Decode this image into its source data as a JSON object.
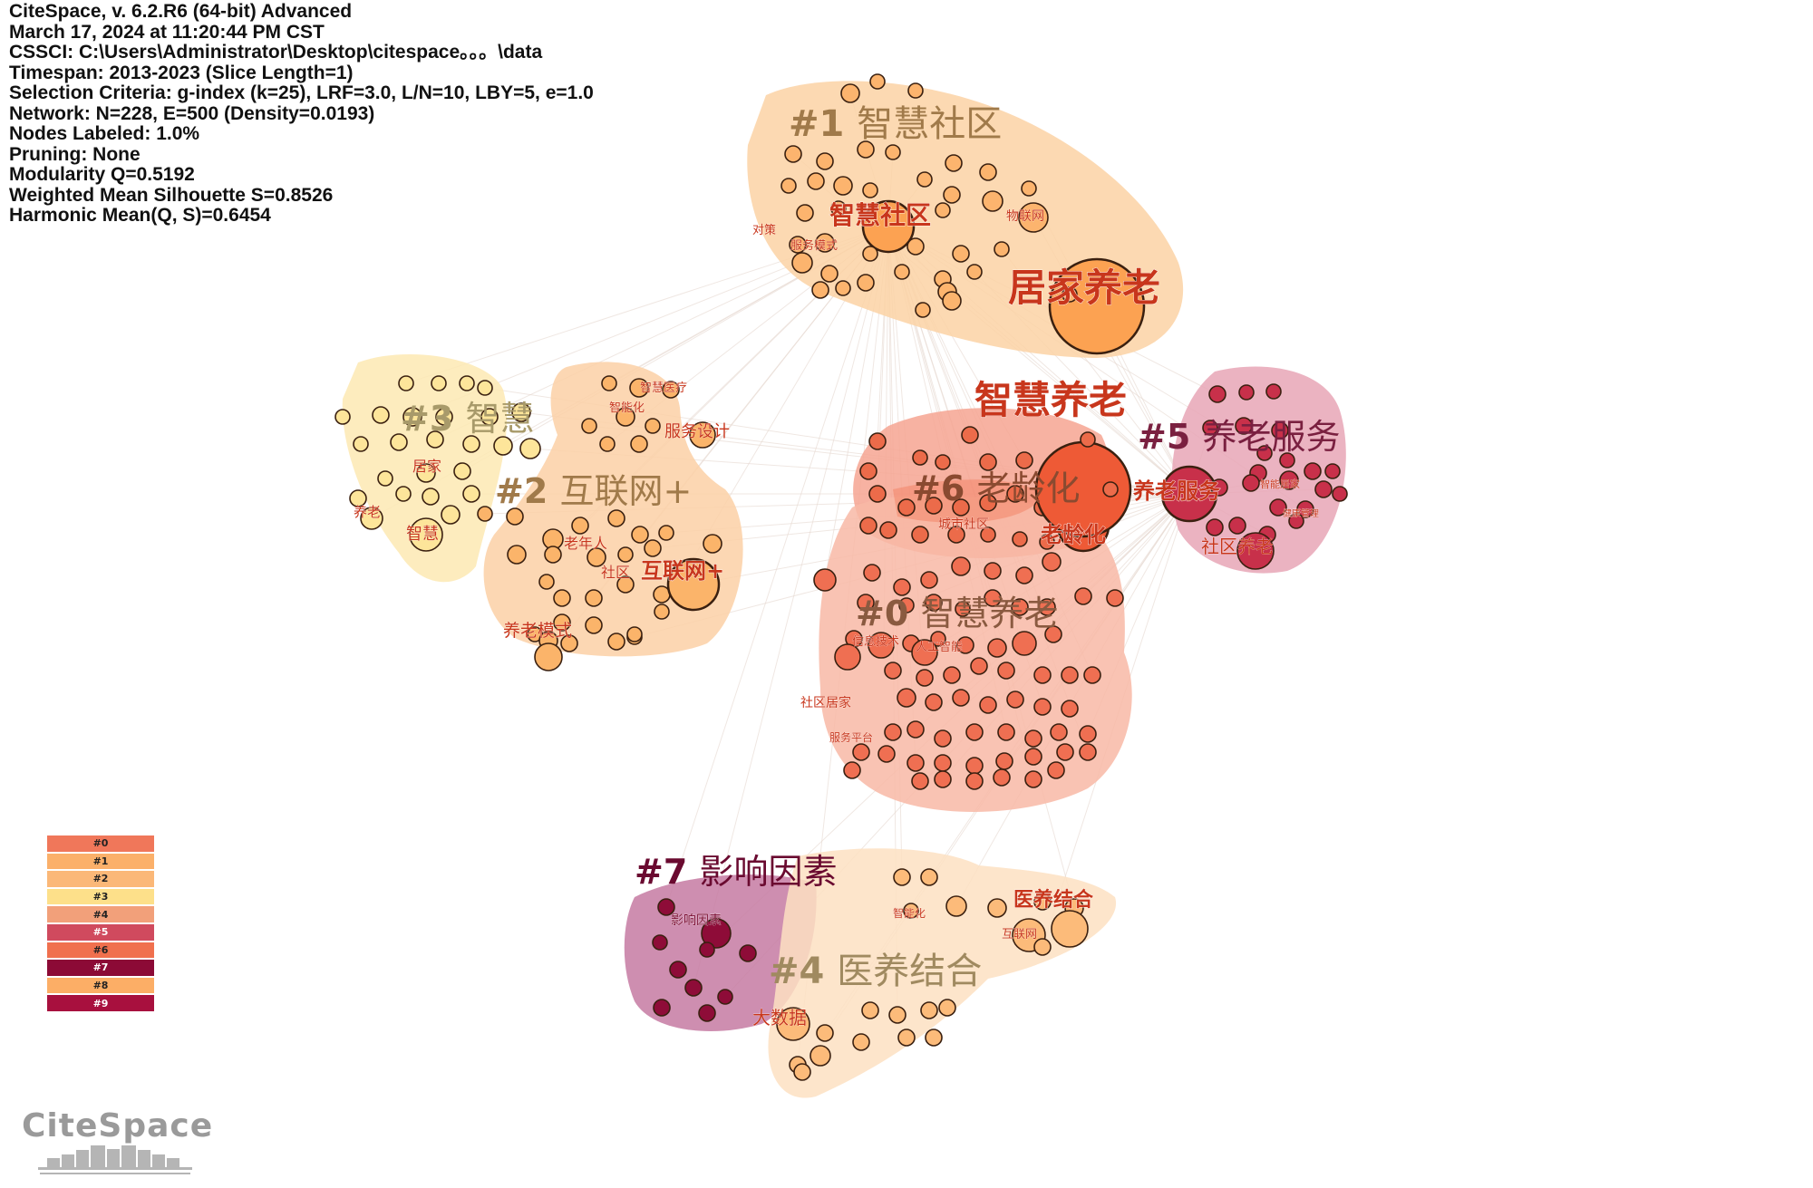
{
  "info_lines": [
    "CiteSpace, v. 6.2.R6 (64-bit) Advanced",
    "March 17, 2024 at 11:20:44 PM CST",
    "CSSCI: C:\\Users\\Administrator\\Desktop\\citespace。。。\\data",
    "Timespan: 2013-2023 (Slice Length=1)",
    "Selection Criteria: g-index (k=25), LRF=3.0, L/N=10, LBY=5, e=1.0",
    "Network: N=228, E=500 (Density=0.0193)",
    "Nodes Labeled: 1.0%",
    "Pruning: None",
    "Modularity Q=0.5192",
    "Weighted Mean Silhouette S=0.8526",
    "Harmonic Mean(Q, S)=0.6454"
  ],
  "clusters": [
    {
      "id": "#1",
      "label": "智慧社区",
      "color": "#fcd2a4",
      "label_color": "#a07a4a"
    },
    {
      "id": "#3",
      "label": "智慧",
      "color": "#fde9b3",
      "label_color": "#a89a6a"
    },
    {
      "id": "#2",
      "label": "互联网+",
      "color": "#fcd0a6",
      "label_color": "#a07a4a"
    },
    {
      "id": "#5",
      "label": "养老服务",
      "color": "#e8a6b6",
      "label_color": "#7a2040"
    },
    {
      "id": "#6",
      "label": "老龄化",
      "color": "#f6a592",
      "label_color": "#8a4a30"
    },
    {
      "id": "#0",
      "label": "智慧养老",
      "color": "#f8b8a6",
      "label_color": "#8a5a40"
    },
    {
      "id": "#7",
      "label": "影响因素",
      "color": "#c67aa2",
      "label_color": "#6a0a30"
    },
    {
      "id": "#4",
      "label": "医养结合",
      "color": "#fde0c2",
      "label_color": "#a08a60"
    }
  ],
  "keywords": [
    {
      "text": "智慧社区",
      "cluster": "#1"
    },
    {
      "text": "物联网",
      "cluster": "#1"
    },
    {
      "text": "对策",
      "cluster": "#1"
    },
    {
      "text": "服务模式",
      "cluster": "#1"
    },
    {
      "text": "居家养老",
      "cluster": "#1"
    },
    {
      "text": "智慧养老",
      "cluster": "#0"
    },
    {
      "text": "智慧医疗",
      "cluster": "#2"
    },
    {
      "text": "智能化",
      "cluster": "#2"
    },
    {
      "text": "服务设计",
      "cluster": "#2"
    },
    {
      "text": "居家",
      "cluster": "#3"
    },
    {
      "text": "养老",
      "cluster": "#3"
    },
    {
      "text": "智慧",
      "cluster": "#3"
    },
    {
      "text": "老年人",
      "cluster": "#2"
    },
    {
      "text": "社区",
      "cluster": "#2"
    },
    {
      "text": "互联网+",
      "cluster": "#2"
    },
    {
      "text": "养老模式",
      "cluster": "#2"
    },
    {
      "text": "城市社区",
      "cluster": "#6"
    },
    {
      "text": "老龄化",
      "cluster": "#6"
    },
    {
      "text": "养老服务",
      "cluster": "#5"
    },
    {
      "text": "智能居家",
      "cluster": "#5"
    },
    {
      "text": "健康管理",
      "cluster": "#5"
    },
    {
      "text": "社区养老",
      "cluster": "#5"
    },
    {
      "text": "信息技术",
      "cluster": "#0"
    },
    {
      "text": "人工智能",
      "cluster": "#0"
    },
    {
      "text": "社区居家",
      "cluster": "#0"
    },
    {
      "text": "服务平台",
      "cluster": "#0"
    },
    {
      "text": "影响因素",
      "cluster": "#7"
    },
    {
      "text": "智能化",
      "cluster": "#4"
    },
    {
      "text": "医养结合",
      "cluster": "#4"
    },
    {
      "text": "互联网",
      "cluster": "#4"
    },
    {
      "text": "大数据",
      "cluster": "#4"
    }
  ],
  "legend": [
    {
      "id": "#0",
      "color": "#f0775a"
    },
    {
      "id": "#1",
      "color": "#fbb06a"
    },
    {
      "id": "#2",
      "color": "#fbb878"
    },
    {
      "id": "#3",
      "color": "#fde08a"
    },
    {
      "id": "#4",
      "color": "#f2a07a"
    },
    {
      "id": "#5",
      "color": "#d04a5e"
    },
    {
      "id": "#6",
      "color": "#f0704e"
    },
    {
      "id": "#7",
      "color": "#8c0a36"
    },
    {
      "id": "#8",
      "color": "#fcae66"
    },
    {
      "id": "#9",
      "color": "#a8103e"
    }
  ],
  "logo_text": "CiteSpace"
}
